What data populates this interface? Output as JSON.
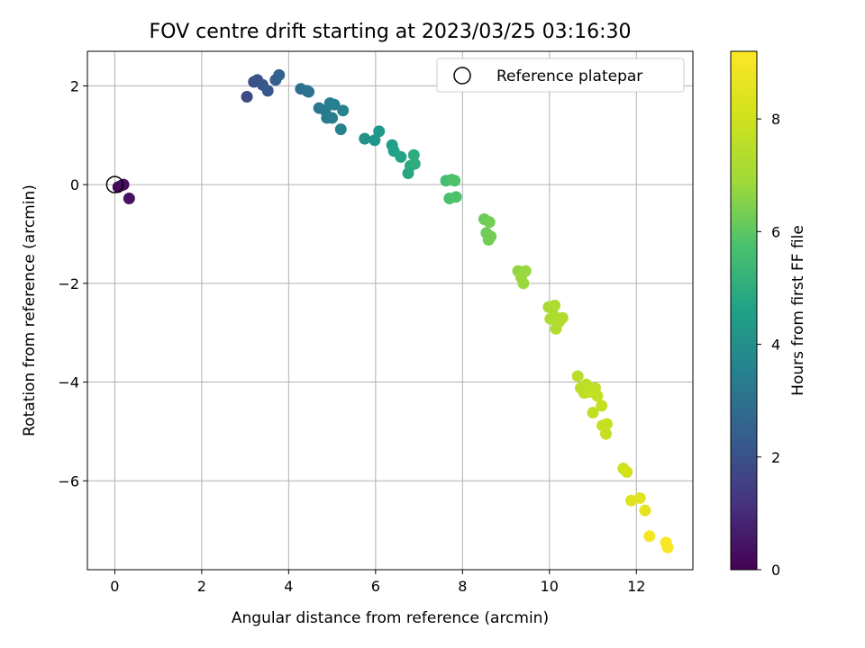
{
  "chart_data": {
    "type": "scatter",
    "title": "FOV centre drift starting at 2023/03/25 03:16:30",
    "xlabel": "Angular distance from reference (arcmin)",
    "ylabel": "Rotation from reference (arcmin)",
    "xlim": [
      -0.63,
      13.3
    ],
    "ylim": [
      -7.8,
      2.7
    ],
    "xticks": [
      0,
      2,
      4,
      6,
      8,
      10,
      12
    ],
    "yticks": [
      -6,
      -4,
      -2,
      0,
      2
    ],
    "grid": true,
    "legend": {
      "position": "top-right",
      "entries": [
        "Reference platepar"
      ]
    },
    "reference_point": {
      "x": 0,
      "y": 0
    },
    "colorbar": {
      "label": "Hours from first FF file",
      "range": [
        0,
        9.2
      ],
      "ticks": [
        0,
        2,
        4,
        6,
        8
      ],
      "colormap": "viridis"
    },
    "points": [
      {
        "x": 0.08,
        "y": -0.05,
        "h": 0.1
      },
      {
        "x": 0.15,
        "y": -0.02,
        "h": 0.2
      },
      {
        "x": 0.2,
        "y": 0.0,
        "h": 0.3
      },
      {
        "x": 0.33,
        "y": -0.28,
        "h": 0.4
      },
      {
        "x": 3.04,
        "y": 1.78,
        "h": 1.8
      },
      {
        "x": 3.2,
        "y": 2.08,
        "h": 1.9
      },
      {
        "x": 3.28,
        "y": 2.12,
        "h": 2.0
      },
      {
        "x": 3.4,
        "y": 2.02,
        "h": 2.1
      },
      {
        "x": 3.52,
        "y": 1.9,
        "h": 2.2
      },
      {
        "x": 3.7,
        "y": 2.12,
        "h": 2.4
      },
      {
        "x": 3.78,
        "y": 2.22,
        "h": 2.5
      },
      {
        "x": 4.28,
        "y": 1.94,
        "h": 2.9
      },
      {
        "x": 4.42,
        "y": 1.9,
        "h": 3.0
      },
      {
        "x": 4.46,
        "y": 1.88,
        "h": 3.1
      },
      {
        "x": 4.7,
        "y": 1.55,
        "h": 3.2
      },
      {
        "x": 4.84,
        "y": 1.5,
        "h": 3.3
      },
      {
        "x": 4.88,
        "y": 1.35,
        "h": 3.3
      },
      {
        "x": 4.95,
        "y": 1.65,
        "h": 3.4
      },
      {
        "x": 5.0,
        "y": 1.35,
        "h": 3.4
      },
      {
        "x": 5.05,
        "y": 1.62,
        "h": 3.5
      },
      {
        "x": 5.2,
        "y": 1.12,
        "h": 3.6
      },
      {
        "x": 5.25,
        "y": 1.5,
        "h": 3.6
      },
      {
        "x": 5.75,
        "y": 0.93,
        "h": 4.1
      },
      {
        "x": 5.98,
        "y": 0.9,
        "h": 4.2
      },
      {
        "x": 6.08,
        "y": 1.08,
        "h": 4.3
      },
      {
        "x": 6.38,
        "y": 0.8,
        "h": 4.5
      },
      {
        "x": 6.42,
        "y": 0.68,
        "h": 4.6
      },
      {
        "x": 6.58,
        "y": 0.56,
        "h": 4.7
      },
      {
        "x": 6.75,
        "y": 0.23,
        "h": 4.8
      },
      {
        "x": 6.8,
        "y": 0.38,
        "h": 4.9
      },
      {
        "x": 6.88,
        "y": 0.6,
        "h": 5.0
      },
      {
        "x": 6.9,
        "y": 0.42,
        "h": 5.0
      },
      {
        "x": 7.62,
        "y": 0.08,
        "h": 5.6
      },
      {
        "x": 7.7,
        "y": -0.28,
        "h": 5.7
      },
      {
        "x": 7.75,
        "y": 0.1,
        "h": 5.7
      },
      {
        "x": 7.82,
        "y": 0.08,
        "h": 5.8
      },
      {
        "x": 7.85,
        "y": -0.25,
        "h": 5.8
      },
      {
        "x": 8.5,
        "y": -0.7,
        "h": 6.2
      },
      {
        "x": 8.55,
        "y": -0.98,
        "h": 6.2
      },
      {
        "x": 8.6,
        "y": -1.12,
        "h": 6.3
      },
      {
        "x": 8.62,
        "y": -0.76,
        "h": 6.3
      },
      {
        "x": 8.65,
        "y": -1.05,
        "h": 6.3
      },
      {
        "x": 9.28,
        "y": -1.75,
        "h": 6.7
      },
      {
        "x": 9.35,
        "y": -1.88,
        "h": 6.8
      },
      {
        "x": 9.4,
        "y": -2.0,
        "h": 6.8
      },
      {
        "x": 9.45,
        "y": -1.75,
        "h": 6.8
      },
      {
        "x": 9.98,
        "y": -2.48,
        "h": 7.1
      },
      {
        "x": 10.02,
        "y": -2.72,
        "h": 7.2
      },
      {
        "x": 10.1,
        "y": -2.65,
        "h": 7.2
      },
      {
        "x": 10.12,
        "y": -2.45,
        "h": 7.2
      },
      {
        "x": 10.15,
        "y": -2.92,
        "h": 7.3
      },
      {
        "x": 10.22,
        "y": -2.78,
        "h": 7.3
      },
      {
        "x": 10.3,
        "y": -2.7,
        "h": 7.3
      },
      {
        "x": 10.65,
        "y": -3.88,
        "h": 7.5
      },
      {
        "x": 10.72,
        "y": -4.12,
        "h": 7.6
      },
      {
        "x": 10.8,
        "y": -4.22,
        "h": 7.6
      },
      {
        "x": 10.85,
        "y": -4.05,
        "h": 7.6
      },
      {
        "x": 10.92,
        "y": -4.2,
        "h": 7.7
      },
      {
        "x": 11.0,
        "y": -4.62,
        "h": 7.7
      },
      {
        "x": 11.05,
        "y": -4.12,
        "h": 7.7
      },
      {
        "x": 11.1,
        "y": -4.28,
        "h": 7.7
      },
      {
        "x": 11.2,
        "y": -4.48,
        "h": 7.8
      },
      {
        "x": 11.22,
        "y": -4.88,
        "h": 7.8
      },
      {
        "x": 11.3,
        "y": -5.05,
        "h": 7.8
      },
      {
        "x": 11.32,
        "y": -4.85,
        "h": 7.8
      },
      {
        "x": 11.7,
        "y": -5.75,
        "h": 8.0
      },
      {
        "x": 11.78,
        "y": -5.82,
        "h": 8.1
      },
      {
        "x": 11.88,
        "y": -6.4,
        "h": 8.4
      },
      {
        "x": 12.08,
        "y": -6.35,
        "h": 8.5
      },
      {
        "x": 12.2,
        "y": -6.6,
        "h": 8.6
      },
      {
        "x": 12.3,
        "y": -7.12,
        "h": 9.0
      },
      {
        "x": 12.68,
        "y": -7.25,
        "h": 9.1
      },
      {
        "x": 12.72,
        "y": -7.35,
        "h": 9.1
      }
    ]
  }
}
